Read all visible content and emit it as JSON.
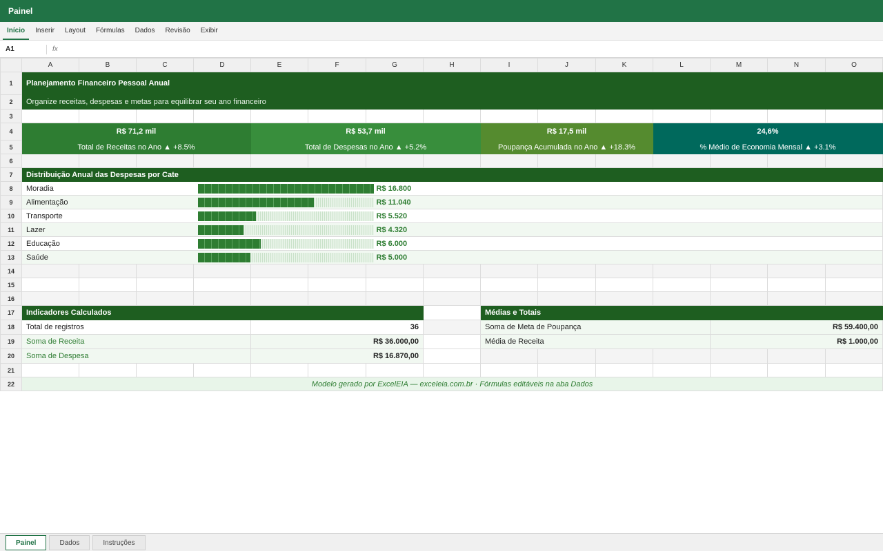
{
  "app": {
    "title": "Painel"
  },
  "ribbon": {
    "tabs": [
      {
        "label": "Início",
        "active": true
      },
      {
        "label": "Inserir"
      },
      {
        "label": "Layout"
      },
      {
        "label": "Fórmulas"
      },
      {
        "label": "Dados"
      },
      {
        "label": "Revisão"
      },
      {
        "label": "Exibir"
      }
    ]
  },
  "formula_bar": {
    "cell_ref": "A1",
    "fx_label": "fx",
    "value": ""
  },
  "columns": [
    "A",
    "B",
    "C",
    "D",
    "E",
    "F",
    "G",
    "H",
    "I",
    "J",
    "K",
    "L",
    "M",
    "N",
    "O"
  ],
  "rows": [
    "1",
    "2",
    "3",
    "4",
    "5",
    "6",
    "7",
    "8",
    "9",
    "10",
    "11",
    "12",
    "13",
    "14",
    "15",
    "16",
    "17",
    "18",
    "19",
    "20",
    "21",
    "22"
  ],
  "header": {
    "title": "Planejamento Financeiro Pessoal Anual",
    "subtitle": "Organize receitas, despesas e metas para equilibrar seu ano financeiro"
  },
  "kpis": [
    {
      "value": "R$ 71,2 mil",
      "label": "Total de Receitas no Ano ▲ +8.5%",
      "color": "#2e7d32"
    },
    {
      "value": "R$ 53,7 mil",
      "label": "Total de Despesas no Ano ▲ +5.2%",
      "color": "#388e3c"
    },
    {
      "value": "R$ 17,5 mil",
      "label": "Poupança Acumulada no Ano ▲ +18.3%",
      "color": "#558b2f"
    },
    {
      "value": "24,6%",
      "label": "% Médio de Economia Mensal ▲ +3.1%",
      "color": "#00695c"
    }
  ],
  "distribution": {
    "title": "Distribuição Anual das Despesas por Cate",
    "max": 16800,
    "items": [
      {
        "label": "Moradia",
        "value": 16800,
        "value_label": "R$ 16.800"
      },
      {
        "label": "Alimentação",
        "value": 11040,
        "value_label": "R$ 11.040"
      },
      {
        "label": "Transporte",
        "value": 5520,
        "value_label": "R$ 5.520"
      },
      {
        "label": "Lazer",
        "value": 4320,
        "value_label": "R$ 4.320"
      },
      {
        "label": "Educação",
        "value": 6000,
        "value_label": "R$ 6.000"
      },
      {
        "label": "Saúde",
        "value": 5000,
        "value_label": "R$ 5.000"
      }
    ]
  },
  "indicators": {
    "title": "Indicadores Calculados",
    "items": [
      {
        "label": "Total de registros",
        "value": "36"
      },
      {
        "label": "Soma de Receita",
        "value": "R$ 36.000,00"
      },
      {
        "label": "Soma de Despesa",
        "value": "R$ 16.870,00"
      }
    ]
  },
  "averages": {
    "title": "Médias e Totais",
    "items": [
      {
        "label": "Soma de Meta de Poupança",
        "value": "R$ 59.400,00"
      },
      {
        "label": "Média de Receita",
        "value": "R$ 1.000,00"
      }
    ]
  },
  "footer_note": "Modelo gerado por ExcelEIA — exceleia.com.br · Fórmulas editáveis na aba Dados",
  "sheet_tabs": [
    {
      "label": "Painel",
      "active": true
    },
    {
      "label": "Dados"
    },
    {
      "label": "Instruções"
    }
  ]
}
